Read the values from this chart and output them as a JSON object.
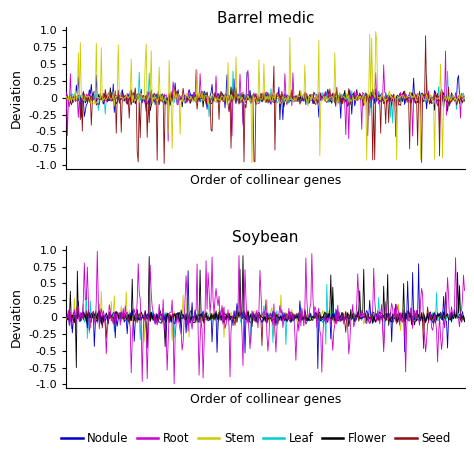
{
  "title1": "Barrel medic",
  "title2": "Soybean",
  "xlabel": "Order of collinear genes",
  "ylabel": "Deviation",
  "ylim": [
    -1.05,
    1.05
  ],
  "yticks": [
    -1.0,
    -0.75,
    -0.5,
    -0.25,
    0.0,
    0.25,
    0.5,
    0.75,
    1.0
  ],
  "ytick_labels": [
    "-1.0",
    "-0.75",
    "-0.5",
    "-0.25",
    "0",
    "0.25",
    "0.5",
    "0.75",
    "1.0"
  ],
  "n_points": 400,
  "colors": {
    "Nodule": "#0000CC",
    "Root": "#CC00CC",
    "Stem": "#CCCC00",
    "Leaf": "#00CCCC",
    "Flower": "#000000",
    "Seed": "#8B1010"
  },
  "legend_order": [
    "Nodule",
    "Root",
    "Stem",
    "Leaf",
    "Flower",
    "Seed"
  ],
  "hline_color": "#999999",
  "hline_lw": 0.7,
  "line_lw": 0.6,
  "title_fontsize": 11,
  "label_fontsize": 9,
  "tick_fontsize": 8,
  "legend_fontsize": 8.5
}
